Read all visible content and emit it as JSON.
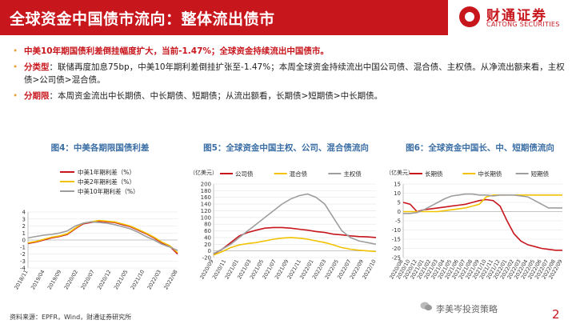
{
  "header": {
    "title": "全球资金中国债市流向：整体流出债市",
    "logo_cn": "财通证券",
    "logo_en": "CAITONG SECURITIES"
  },
  "bullets": [
    {
      "lead": "",
      "text": "中美10年期国债利差倒挂幅度扩大，当前-1.47%；全球资金持续流出中国债市。"
    },
    {
      "lead": "分类型",
      "text": "：联储再度加息75bp，中美10年期利差倒挂扩张至-1.47%；本周全球资金持续流出中国公司债、混合债、主权债。从净流出额来看，主权债>公司债>混合债。"
    },
    {
      "lead": "分期限",
      "text": "：本周资金流出中长期债、中长期债、短期债；从流出额看，长期债>短期债>中长期债。"
    }
  ],
  "chart_titles": {
    "c4": "图4：中美各期限国债利差",
    "c5": "图5：全球资金中国主权、公司、混合债流向",
    "c6": "图6：全球资金中国长、中、短期债流向"
  },
  "chart_data": [
    {
      "type": "line",
      "title": "图4：中美各期限国债利差",
      "ylim": [
        -4,
        4
      ],
      "yticks": [
        4,
        3,
        2,
        1,
        0,
        -1,
        -2,
        -3,
        -4
      ],
      "xticks": [
        "2018/11",
        "2019/04",
        "2019/09",
        "2020/02",
        "2020/07",
        "2020/12",
        "2021/05",
        "2021/10",
        "2022/03",
        "2022/08"
      ],
      "series": [
        {
          "name": "中美1年期利差（%）",
          "color": "#c8161d",
          "values": [
            -0.5,
            -0.3,
            0.0,
            0.3,
            0.5,
            0.8,
            1.6,
            2.3,
            2.5,
            2.7,
            2.6,
            2.5,
            2.2,
            1.9,
            1.4,
            0.9,
            0.3,
            -0.4,
            -0.9,
            -2.0
          ]
        },
        {
          "name": "中美2年期利差（%）",
          "color": "#f2c200",
          "values": [
            -0.4,
            -0.2,
            0.1,
            0.4,
            0.6,
            0.9,
            1.7,
            2.4,
            2.6,
            2.8,
            2.7,
            2.6,
            2.3,
            2.0,
            1.5,
            1.0,
            0.4,
            -0.3,
            -0.8,
            -1.8
          ]
        },
        {
          "name": "中美10年期利差（%）",
          "color": "#9e9e9e",
          "values": [
            0.3,
            0.5,
            0.7,
            0.8,
            1.0,
            1.3,
            2.0,
            2.4,
            2.6,
            2.5,
            2.4,
            2.2,
            1.9,
            1.6,
            1.1,
            0.5,
            0.0,
            -0.6,
            -1.0,
            -1.5
          ]
        }
      ]
    },
    {
      "type": "line",
      "title": "图5：全球资金中国主权、公司、混合债流向",
      "ylabel": "（亿美元）",
      "ylim": [
        -20,
        200
      ],
      "yticks": [
        200,
        180,
        160,
        140,
        120,
        100,
        80,
        60,
        40,
        20,
        0,
        -20
      ],
      "xticks": [
        "2020/09",
        "2020/11",
        "2021/01",
        "2021/03",
        "2021/05",
        "2021/07",
        "2021/09",
        "2021/11",
        "2022/01",
        "2022/03",
        "2022/05",
        "2022/07",
        "2022/09",
        "2022/10"
      ],
      "series": [
        {
          "name": "公司债",
          "color": "#c8161d",
          "values": [
            -10,
            5,
            25,
            45,
            55,
            62,
            68,
            70,
            70,
            68,
            65,
            62,
            58,
            55,
            50,
            48,
            45,
            43,
            42,
            40
          ]
        },
        {
          "name": "混合债",
          "color": "#f2c200",
          "values": [
            -12,
            -2,
            10,
            18,
            22,
            25,
            30,
            35,
            38,
            40,
            38,
            35,
            30,
            25,
            18,
            10,
            5,
            2,
            0,
            -2
          ]
        },
        {
          "name": "主权债",
          "color": "#9e9e9e",
          "values": [
            -8,
            5,
            20,
            40,
            60,
            80,
            100,
            120,
            140,
            155,
            165,
            170,
            160,
            140,
            100,
            60,
            40,
            30,
            25,
            20
          ]
        }
      ]
    },
    {
      "type": "line",
      "title": "图6：全球资金中国长、中、短期债流向",
      "ylabel": "（亿美元）",
      "ylim": [
        -25,
        15
      ],
      "yticks": [
        15,
        10,
        5,
        0,
        -5,
        -10,
        -15,
        -20,
        -25
      ],
      "xticks": [
        "2020/08",
        "2020/10",
        "2020/12",
        "2021/01",
        "2021/02",
        "2021/03",
        "2021/04",
        "2021/05",
        "2021/06",
        "2021/07",
        "2021/08",
        "2021/09",
        "2021/10",
        "2021/11",
        "2021/12",
        "2022/01",
        "2022/02",
        "2022/03",
        "2022/04",
        "2022/05",
        "2022/06",
        "2022/07",
        "2022/08",
        "2022/09"
      ],
      "series": [
        {
          "name": "长期债",
          "color": "#c8161d",
          "values": [
            5,
            4,
            0,
            1,
            1.5,
            2,
            2.5,
            3,
            3.5,
            4,
            5,
            6,
            6.5,
            6,
            3,
            -5,
            -12,
            -16,
            -18,
            -19,
            -20,
            -20.5,
            -21,
            -21
          ]
        },
        {
          "name": "中长期债",
          "color": "#f2c200",
          "values": [
            0,
            0,
            0,
            0,
            0,
            0,
            0.5,
            1,
            1.5,
            2,
            3,
            4,
            8,
            9,
            9,
            9,
            9,
            9,
            9,
            9,
            9,
            9,
            9,
            9
          ]
        },
        {
          "name": "短期债",
          "color": "#9e9e9e",
          "values": [
            -1,
            -1,
            -0.5,
            1,
            3,
            5,
            7,
            8.5,
            9,
            9.5,
            9.5,
            9,
            9,
            8.5,
            9,
            9,
            9,
            8.5,
            8,
            6,
            4,
            2,
            2,
            2
          ]
        }
      ]
    }
  ],
  "source": "资料来源：EPFR，Wind，财通证券研究所",
  "watermark": "李美岑投资策略",
  "page_number": "2"
}
